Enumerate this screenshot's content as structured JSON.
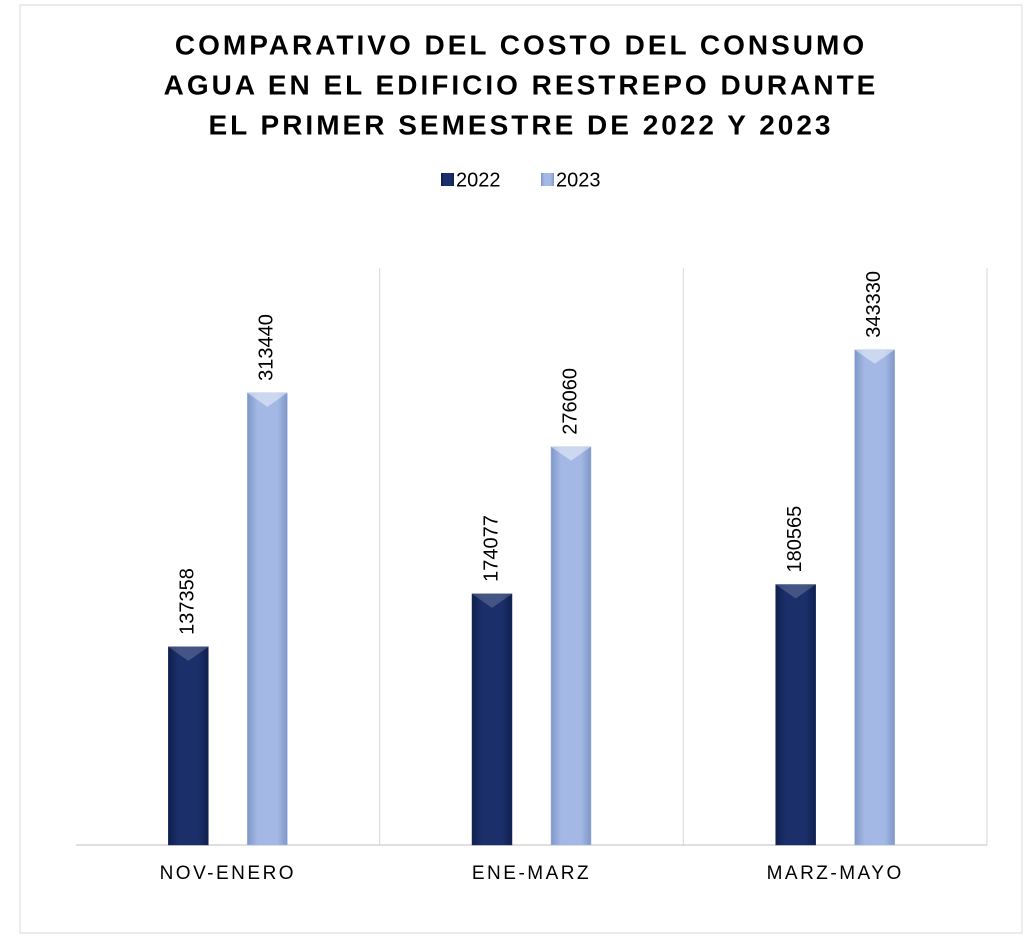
{
  "chart_data": {
    "type": "bar",
    "title": [
      "COMPARATIVO DEL COSTO DEL CONSUMO",
      "AGUA EN EL EDIFICIO RESTREPO DURANTE",
      "EL PRIMER SEMESTRE DE 2022 Y 2023"
    ],
    "categories": [
      "NOV-ENERO",
      "ENE-MARZ",
      "MARZ-MAYO"
    ],
    "series": [
      {
        "name": "2022",
        "color": "#1b2f6b",
        "values": [
          137358,
          174077,
          180565
        ]
      },
      {
        "name": "2023",
        "color": "#9fb5e2",
        "values": [
          313440,
          276060,
          343330
        ]
      }
    ],
    "ylim": [
      0,
      400000
    ],
    "legend": "top"
  }
}
